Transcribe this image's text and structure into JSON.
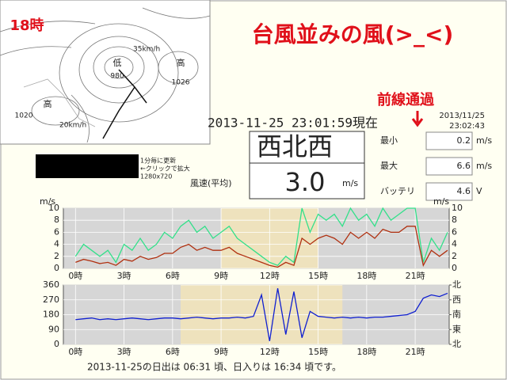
{
  "overlay": {
    "time_label": "18時",
    "headline": "台風並みの風(>_<)",
    "annotation": "前線通過"
  },
  "map": {
    "pressure_labels": [
      "低",
      "980",
      "高",
      "1026",
      "高",
      "1020"
    ],
    "speed_labels": [
      "35km/h",
      "20km/h"
    ],
    "notes": [
      "1分毎に更新",
      "←クリックで拡大",
      "1280x720"
    ]
  },
  "clock": {
    "date": "2013/11/25",
    "time": "23:02:43"
  },
  "current": {
    "timestamp": "2013-11-25 23:01:59現在",
    "direction": "西北西",
    "speed": "3.0",
    "unit": "m/s",
    "speed_caption": "風速(平均)"
  },
  "stats": [
    {
      "label": "最小",
      "value": 0.2,
      "unit": "m/s"
    },
    {
      "label": "最大",
      "value": 6.6,
      "unit": "m/s"
    },
    {
      "label": "バッテリ",
      "value": 4.6,
      "unit": "V"
    }
  ],
  "chart_data": [
    {
      "type": "line",
      "ylabel": "m/s",
      "xlim": [
        -0.75,
        23.1
      ],
      "ylim": [
        0,
        10
      ],
      "yticks": [
        0,
        2,
        4,
        6,
        8,
        10
      ],
      "xticks": [
        {
          "value": 0,
          "label": "0時"
        },
        {
          "value": 3,
          "label": "3時"
        },
        {
          "value": 6,
          "label": "6時"
        },
        {
          "value": 9,
          "label": "9時"
        },
        {
          "value": 12,
          "label": "12時"
        },
        {
          "value": 15,
          "label": "15時"
        },
        {
          "value": 18,
          "label": "18時"
        },
        {
          "value": 21,
          "label": "21時"
        }
      ],
      "background": "#d6d6d6",
      "bands": [
        {
          "from": 9,
          "to": 15,
          "color": "#eee2bd"
        }
      ],
      "x": [
        0,
        0.5,
        1,
        1.5,
        2,
        2.5,
        3,
        3.5,
        4,
        4.5,
        5,
        5.5,
        6,
        6.5,
        7,
        7.5,
        8,
        8.5,
        9,
        9.5,
        10,
        10.5,
        11,
        11.5,
        12,
        12.5,
        13,
        13.5,
        14,
        14.5,
        15,
        15.5,
        16,
        16.5,
        17,
        17.5,
        18,
        18.5,
        19,
        19.5,
        20,
        20.5,
        21,
        21.5,
        22,
        22.5,
        23
      ],
      "series": [
        {
          "color": "#33e08a",
          "values": [
            2,
            4,
            3,
            2,
            3,
            1,
            4,
            3,
            5,
            3,
            4,
            6,
            5,
            7,
            8,
            6,
            7,
            5,
            6,
            7,
            5,
            4,
            3,
            2,
            1,
            0.5,
            2,
            1,
            10,
            6,
            9,
            8,
            9,
            7,
            10,
            8,
            9,
            7,
            10,
            8,
            9,
            10,
            10,
            1,
            5,
            3,
            6
          ]
        },
        {
          "color": "#b03010",
          "values": [
            1,
            1.5,
            1.2,
            0.8,
            1,
            0.5,
            1.5,
            1.2,
            2,
            1.5,
            1.8,
            2.5,
            2.5,
            3.5,
            4,
            3,
            3.5,
            3,
            3,
            3.5,
            2.5,
            2,
            1.5,
            1,
            0.5,
            0.2,
            1,
            0.5,
            5,
            4,
            5,
            5.5,
            5,
            4,
            6,
            5,
            6,
            5,
            6.5,
            6,
            6,
            7,
            7,
            0.5,
            3,
            2,
            3
          ]
        }
      ]
    },
    {
      "type": "line",
      "xlim": [
        -0.75,
        23.1
      ],
      "ylim": [
        0,
        360
      ],
      "yticks": [
        0,
        90,
        180,
        270,
        360
      ],
      "y2lim": [
        0,
        360
      ],
      "y2ticks": [
        {
          "value": 0,
          "label": "北"
        },
        {
          "value": 90,
          "label": "東"
        },
        {
          "value": 180,
          "label": "南"
        },
        {
          "value": 270,
          "label": "西"
        },
        {
          "value": 360,
          "label": "北"
        }
      ],
      "xticks": [
        {
          "value": 0,
          "label": "0時"
        },
        {
          "value": 3,
          "label": "3時"
        },
        {
          "value": 6,
          "label": "6時"
        },
        {
          "value": 9,
          "label": "9時"
        },
        {
          "value": 12,
          "label": "12時"
        },
        {
          "value": 15,
          "label": "15時"
        },
        {
          "value": 18,
          "label": "18時"
        },
        {
          "value": 21,
          "label": "21時"
        }
      ],
      "background": "#d6d6d6",
      "bands": [
        {
          "from": 6.5,
          "to": 16.5,
          "color": "#eee2bd"
        }
      ],
      "x": [
        0,
        0.5,
        1,
        1.5,
        2,
        2.5,
        3,
        3.5,
        4,
        4.5,
        5,
        5.5,
        6,
        6.5,
        7,
        7.5,
        8,
        8.5,
        9,
        9.5,
        10,
        10.5,
        11,
        11.5,
        12,
        12.5,
        13,
        13.5,
        14,
        14.5,
        15,
        15.5,
        16,
        16.5,
        17,
        17.5,
        18,
        18.5,
        19,
        19.5,
        20,
        20.5,
        21,
        21.5,
        22,
        22.5,
        23
      ],
      "series": [
        {
          "color": "#1020d0",
          "values": [
            150,
            155,
            160,
            150,
            155,
            150,
            155,
            160,
            155,
            150,
            155,
            160,
            160,
            155,
            160,
            165,
            160,
            155,
            160,
            160,
            165,
            160,
            170,
            300,
            20,
            340,
            60,
            320,
            40,
            200,
            170,
            165,
            160,
            165,
            160,
            165,
            160,
            165,
            165,
            170,
            175,
            180,
            200,
            280,
            300,
            290,
            310
          ]
        }
      ]
    }
  ],
  "footer": "2013-11-25の日出は 06:31 頃、日入りは 16:34 頃です。"
}
